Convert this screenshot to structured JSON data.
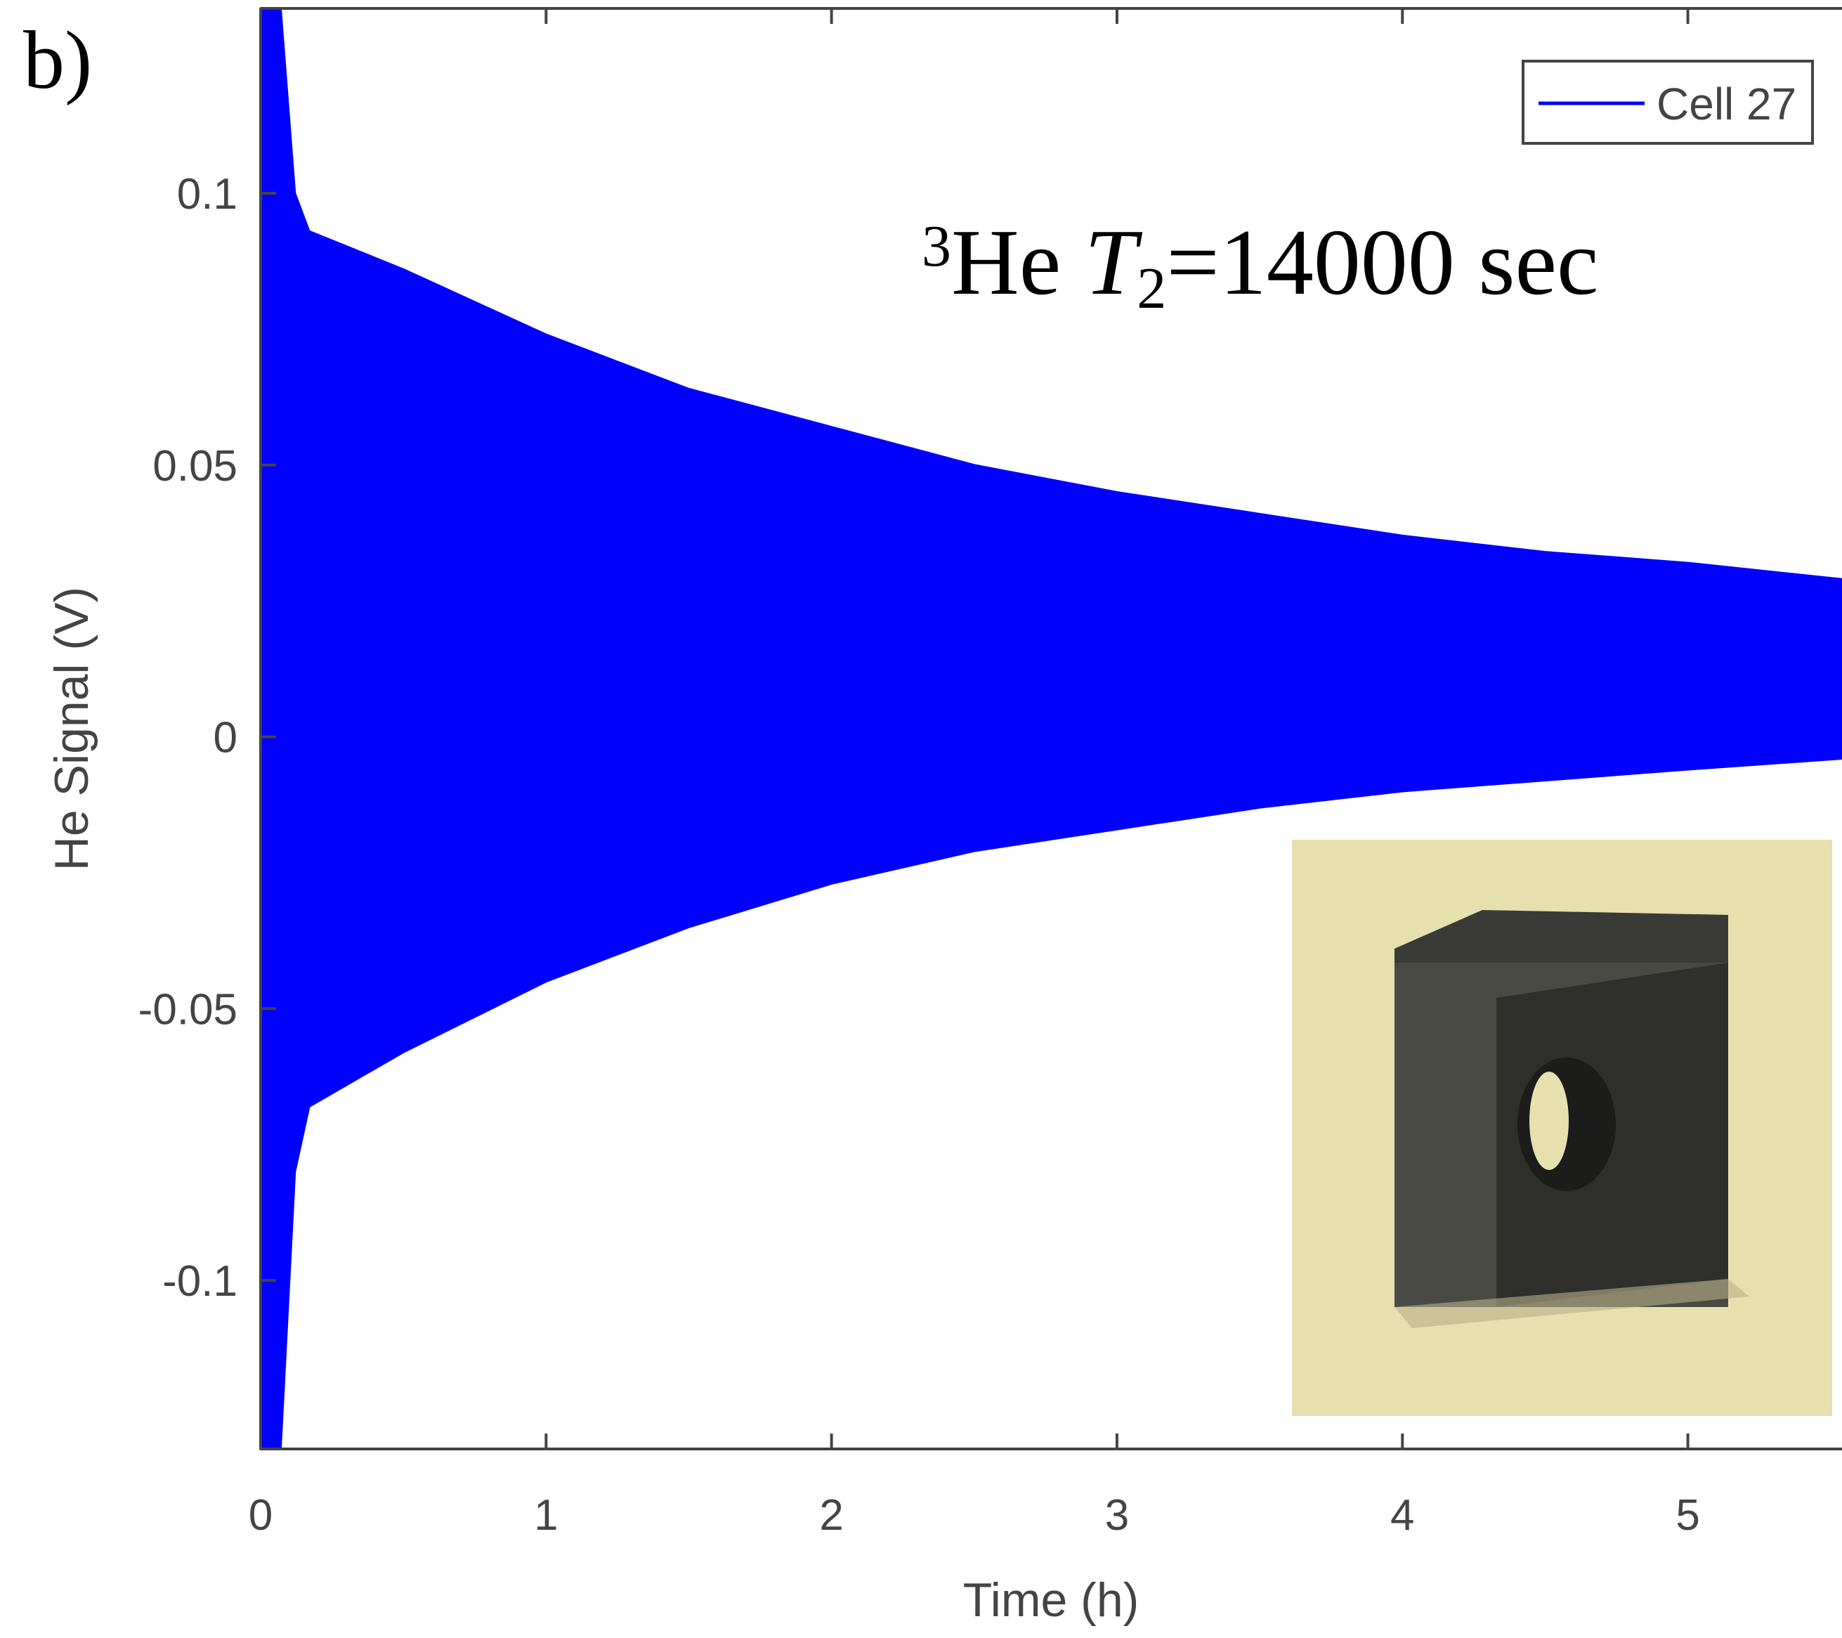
{
  "chart_data": {
    "type": "envelope",
    "panel_label": "b)",
    "annotation": {
      "sup": "3",
      "text": "He ",
      "italic": "T",
      "sub": "2",
      "rest": "=14000 sec"
    },
    "xlabel": "Time (h)",
    "ylabel": "He Signal (V)",
    "x": [
      0.0,
      0.07,
      0.12,
      0.17,
      0.5,
      1,
      1.5,
      2,
      2.5,
      3,
      3.5,
      4,
      4.5,
      5,
      5.54
    ],
    "series": [
      {
        "name": "Cell 27",
        "color": "#0000ff",
        "values": [
          0.134,
          0.134,
          0.1,
          0.093,
          0.086,
          0.074,
          0.064,
          0.057,
          0.05,
          0.045,
          0.041,
          0.037,
          0.034,
          0.032,
          0.029
        ],
        "lower": [
          -0.131,
          -0.131,
          -0.08,
          -0.068,
          -0.058,
          -0.045,
          -0.035,
          -0.027,
          -0.021,
          -0.017,
          -0.013,
          -0.01,
          -0.008,
          -0.006,
          -0.004
        ]
      }
    ],
    "xlim": [
      0,
      5.54
    ],
    "ylim": [
      -0.131,
      0.134
    ],
    "xticks": [
      0,
      1,
      2,
      3,
      4,
      5
    ],
    "yticks": [
      -0.1,
      -0.05,
      0,
      0.05,
      0.1
    ],
    "legend": "upper-right"
  }
}
